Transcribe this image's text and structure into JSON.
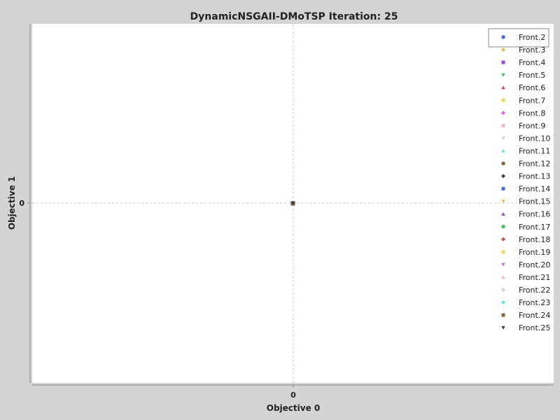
{
  "chart_data": {
    "type": "scatter",
    "title": "DynamicNSGAII-DMoTSP Iteration: 25",
    "xlabel": "Objective 0",
    "ylabel": "Objective 1",
    "xlim": [
      -1,
      1
    ],
    "ylim": [
      -1,
      1
    ],
    "x_ticks": [
      "0"
    ],
    "y_ticks": [
      "0"
    ],
    "grid": true,
    "legend_position": "top-right",
    "series": [
      {
        "name": "Front.2",
        "color": "#4a6bf0",
        "marker": "circle",
        "points": [
          [
            0,
            0
          ]
        ]
      },
      {
        "name": "Front.3",
        "color": "#f5b942",
        "marker": "diamond",
        "points": [
          [
            0,
            0
          ]
        ]
      },
      {
        "name": "Front.4",
        "color": "#a040f0",
        "marker": "square",
        "points": [
          [
            0,
            0
          ]
        ]
      },
      {
        "name": "Front.5",
        "color": "#3cc85a",
        "marker": "triangle-down",
        "points": [
          [
            0,
            0
          ]
        ]
      },
      {
        "name": "Front.6",
        "color": "#e04848",
        "marker": "triangle-up",
        "points": [
          [
            0,
            0
          ]
        ]
      },
      {
        "name": "Front.7",
        "color": "#f8d84a",
        "marker": "circle",
        "points": [
          [
            0,
            0
          ]
        ]
      },
      {
        "name": "Front.8",
        "color": "#ee5cf0",
        "marker": "diamond",
        "points": [
          [
            0,
            0
          ]
        ]
      },
      {
        "name": "Front.9",
        "color": "#f5b8c8",
        "marker": "square",
        "points": [
          [
            0,
            0
          ]
        ]
      },
      {
        "name": "Front.10",
        "color": "#d8d8d8",
        "marker": "triangle-down",
        "points": [
          [
            0,
            0
          ]
        ]
      },
      {
        "name": "Front.11",
        "color": "#56e8f0",
        "marker": "triangle-up",
        "points": [
          [
            0,
            0
          ]
        ]
      },
      {
        "name": "Front.12",
        "color": "#8c6438",
        "marker": "circle",
        "points": [
          [
            0,
            0
          ]
        ]
      },
      {
        "name": "Front.13",
        "color": "#404040",
        "marker": "diamond",
        "points": [
          [
            0,
            0
          ]
        ]
      },
      {
        "name": "Front.14",
        "color": "#4a6bf0",
        "marker": "square",
        "points": [
          [
            0,
            0
          ]
        ]
      },
      {
        "name": "Front.15",
        "color": "#f5b942",
        "marker": "triangle-down",
        "points": [
          [
            0,
            0
          ]
        ]
      },
      {
        "name": "Front.16",
        "color": "#a040f0",
        "marker": "triangle-up",
        "points": [
          [
            0,
            0
          ]
        ]
      },
      {
        "name": "Front.17",
        "color": "#3cc85a",
        "marker": "circle",
        "points": [
          [
            0,
            0
          ]
        ]
      },
      {
        "name": "Front.18",
        "color": "#e04848",
        "marker": "diamond",
        "points": [
          [
            0,
            0
          ]
        ]
      },
      {
        "name": "Front.19",
        "color": "#f8d84a",
        "marker": "square",
        "points": [
          [
            0,
            0
          ]
        ]
      },
      {
        "name": "Front.20",
        "color": "#ee5cf0",
        "marker": "triangle-down",
        "points": [
          [
            0,
            0
          ]
        ]
      },
      {
        "name": "Front.21",
        "color": "#f5b8c8",
        "marker": "triangle-up",
        "points": [
          [
            0,
            0
          ]
        ]
      },
      {
        "name": "Front.22",
        "color": "#d8d8d8",
        "marker": "circle",
        "points": [
          [
            0,
            0
          ]
        ]
      },
      {
        "name": "Front.23",
        "color": "#56e8f0",
        "marker": "diamond",
        "points": [
          [
            0,
            0
          ]
        ]
      },
      {
        "name": "Front.24",
        "color": "#8c6438",
        "marker": "square",
        "points": [
          [
            0,
            0
          ]
        ]
      },
      {
        "name": "Front.25",
        "color": "#404040",
        "marker": "triangle-down",
        "points": [
          [
            0,
            0
          ]
        ]
      }
    ]
  }
}
